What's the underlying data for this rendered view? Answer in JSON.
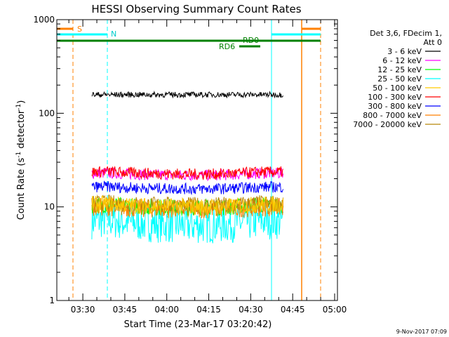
{
  "chart_data": {
    "type": "line",
    "title": "HESSI Observing Summary Count Rates",
    "xlabel": "Start Time (23-Mar-17 03:20:42)",
    "ylabel_main": "Count Rate (s",
    "ylabel_sup1": "-1",
    "ylabel_mid": " detector",
    "ylabel_sup2": "-1",
    "ylabel_end": ")",
    "yscale": "log",
    "ylim": [
      1,
      1000
    ],
    "xlim_minutes": [
      20.7,
      121.0
    ],
    "yticks": [
      {
        "value": 1,
        "label": "1"
      },
      {
        "value": 10,
        "label": "10"
      },
      {
        "value": 100,
        "label": "100"
      },
      {
        "value": 1000,
        "label": "1000"
      }
    ],
    "xticks": [
      {
        "value": 30,
        "label": "03:30"
      },
      {
        "value": 45,
        "label": "03:45"
      },
      {
        "value": 60,
        "label": "04:00"
      },
      {
        "value": 75,
        "label": "04:15"
      },
      {
        "value": 90,
        "label": "04:30"
      },
      {
        "value": 105,
        "label": "04:45"
      },
      {
        "value": 120,
        "label": "05:00"
      }
    ],
    "legend_header": [
      "Det 3,6, FDecim 1,",
      "Att 0"
    ],
    "series": [
      {
        "name": "3 - 6 keV",
        "color": "#000000",
        "base": 158,
        "amp": 0.0,
        "noise": 0.03
      },
      {
        "name": "6 - 12 keV",
        "color": "#ff00ff",
        "base": 23.5,
        "amp": 0.1,
        "noise": 0.06
      },
      {
        "name": "12 - 25 keV",
        "color": "#00ff00",
        "base": 10.8,
        "amp": 0.12,
        "noise": 0.09
      },
      {
        "name": "25 - 50 keV",
        "color": "#00ffff",
        "base": 7.6,
        "amp": 0.22,
        "noise": 0.2
      },
      {
        "name": "50 - 100 keV",
        "color": "#ffcc00",
        "base": 11.0,
        "amp": 0.12,
        "noise": 0.09
      },
      {
        "name": "100 - 300 keV",
        "color": "#ff0000",
        "base": 24.5,
        "amp": 0.12,
        "noise": 0.06
      },
      {
        "name": "300 - 800 keV",
        "color": "#0000ff",
        "base": 16.8,
        "amp": 0.1,
        "noise": 0.06
      },
      {
        "name": "800 - 7000 keV",
        "color": "#ff8000",
        "base": 10.2,
        "amp": 0.1,
        "noise": 0.1
      },
      {
        "name": "7000 - 20000 keV",
        "color": "#b8860b",
        "base": 11.2,
        "amp": 0.1,
        "noise": 0.09
      }
    ],
    "data_time_range_minutes": [
      33.2,
      101.6
    ],
    "annotations": [
      {
        "label": "S",
        "color": "#ff8000"
      },
      {
        "label": "N",
        "color": "#00ffff"
      },
      {
        "label": "RD0",
        "color": "#008000"
      },
      {
        "label": "RD6",
        "color": "#008000"
      }
    ],
    "footer_date": "9-Nov-2017 07:09"
  }
}
